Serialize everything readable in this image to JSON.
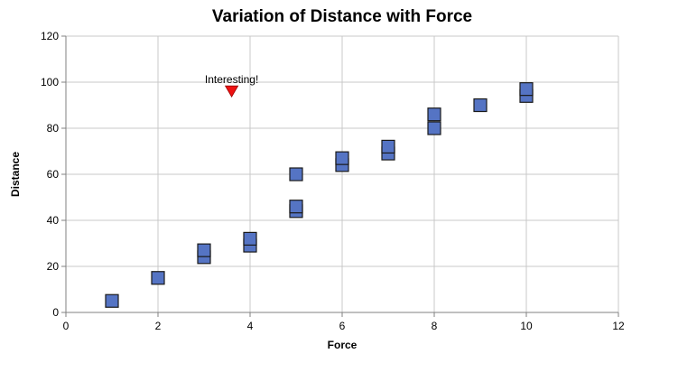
{
  "chart_data": {
    "type": "scatter",
    "title": "Variation of Distance with Force",
    "xlabel": "Force",
    "ylabel": "Distance",
    "xlim": [
      0,
      12
    ],
    "ylim": [
      0,
      120
    ],
    "x_ticks": [
      "0",
      "2",
      "4",
      "6",
      "8",
      "10",
      "12"
    ],
    "y_ticks": [
      "0",
      "20",
      "40",
      "60",
      "80",
      "100",
      "120"
    ],
    "grid": true,
    "legend": "none",
    "series": [
      {
        "marker": "square",
        "color": "#5574c4",
        "points": [
          {
            "x": 1,
            "y": 5
          },
          {
            "x": 2,
            "y": 15
          },
          {
            "x": 3,
            "y": 24
          },
          {
            "x": 3,
            "y": 27
          },
          {
            "x": 4,
            "y": 29
          },
          {
            "x": 4,
            "y": 32
          },
          {
            "x": 5,
            "y": 44
          },
          {
            "x": 5,
            "y": 46
          },
          {
            "x": 5,
            "y": 60
          },
          {
            "x": 6,
            "y": 64
          },
          {
            "x": 6,
            "y": 67
          },
          {
            "x": 7,
            "y": 69
          },
          {
            "x": 7,
            "y": 72
          },
          {
            "x": 8,
            "y": 80
          },
          {
            "x": 8,
            "y": 86
          },
          {
            "x": 9,
            "y": 90
          },
          {
            "x": 10,
            "y": 94
          },
          {
            "x": 10,
            "y": 97
          }
        ]
      }
    ],
    "annotations": [
      {
        "text": "Interesting!",
        "x": 3.6,
        "y": 96,
        "marker": "triangle-down",
        "color": "#ee1111"
      }
    ]
  }
}
